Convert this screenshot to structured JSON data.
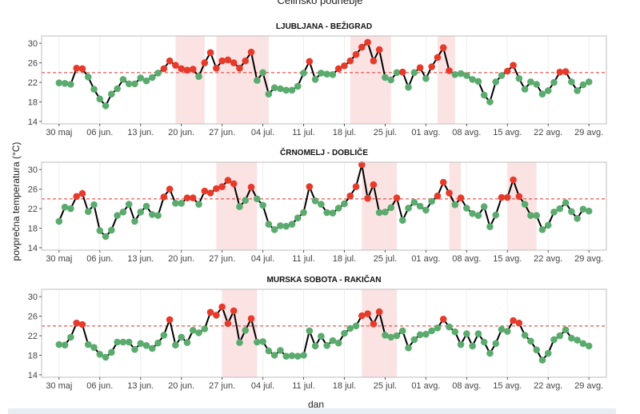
{
  "page": {
    "title": "Celinsko podnebje"
  },
  "colors": {
    "normal_point": "#5bab6f",
    "hot_point": "#e63a2a",
    "line": "#000000",
    "threshold": "#e0302a",
    "heatwave_band": "#fbe3e3",
    "grid": "#ececec",
    "panel_border": "#bdbdbd"
  },
  "chart_data": {
    "type": "line",
    "title": "",
    "xlabel": "dan",
    "ylabel": "povprečna temperatura (°C)",
    "x_start": "2023-05-30",
    "xlim": [
      "2023-05-27",
      "2023-09-01"
    ],
    "x_ticks": [
      {
        "date": "2023-05-30",
        "label": "30 maj"
      },
      {
        "date": "2023-06-06",
        "label": "06 jun."
      },
      {
        "date": "2023-06-13",
        "label": "13 jun."
      },
      {
        "date": "2023-06-20",
        "label": "20 jun."
      },
      {
        "date": "2023-06-27",
        "label": "27 jun."
      },
      {
        "date": "2023-07-04",
        "label": "04 jul."
      },
      {
        "date": "2023-07-11",
        "label": "11 jul."
      },
      {
        "date": "2023-07-18",
        "label": "18 jul."
      },
      {
        "date": "2023-07-25",
        "label": "25 jul."
      },
      {
        "date": "2023-08-01",
        "label": "01 avg."
      },
      {
        "date": "2023-08-08",
        "label": "08 avg."
      },
      {
        "date": "2023-08-15",
        "label": "15 avg."
      },
      {
        "date": "2023-08-22",
        "label": "22 avg."
      },
      {
        "date": "2023-08-29",
        "label": "29 avg."
      }
    ],
    "ylim": [
      13.5,
      31.5
    ],
    "y_ticks": [
      14,
      18,
      22,
      26,
      30
    ],
    "threshold": 24,
    "grid": true,
    "panels": [
      {
        "name": "LJUBLJANA - BEŽIGRAD",
        "values": [
          21.9,
          21.8,
          21.6,
          24.9,
          24.8,
          23.1,
          20.6,
          18.6,
          17.2,
          19.6,
          20.7,
          22.6,
          21.7,
          21.7,
          22.9,
          22.3,
          23.0,
          23.9,
          24.8,
          26.4,
          25.5,
          24.8,
          24.5,
          24.7,
          23.2,
          26.0,
          28.1,
          24.9,
          26.4,
          26.6,
          26.0,
          24.9,
          26.4,
          28.2,
          22.4,
          24.0,
          19.6,
          20.9,
          20.7,
          20.4,
          20.4,
          21.2,
          23.9,
          26.3,
          22.6,
          23.9,
          23.7,
          23.6,
          24.8,
          25.4,
          26.4,
          27.7,
          29.2,
          30.2,
          26.4,
          28.7,
          23.0,
          22.5,
          24.0,
          24.1,
          21.0,
          24.0,
          25.0,
          22.8,
          25.2,
          27.1,
          29.1,
          24.4,
          23.6,
          23.8,
          23.4,
          22.6,
          22.2,
          19.4,
          18.0,
          22.1,
          23.4,
          24.3,
          25.5,
          22.8,
          20.6,
          22.1,
          21.6,
          19.6,
          20.3,
          22.0,
          24.1,
          24.2,
          22.1,
          20.3,
          21.5,
          22.1
        ],
        "heatwave_ranges": [
          [
            "2023-06-19",
            "2023-06-24"
          ],
          [
            "2023-06-26",
            "2023-07-05"
          ],
          [
            "2023-07-19",
            "2023-07-26"
          ],
          [
            "2023-08-03",
            "2023-08-06"
          ]
        ]
      },
      {
        "name": "ČRNOMELJ - DOBLIČE",
        "values": [
          19.4,
          22.3,
          22.0,
          24.5,
          25.1,
          21.4,
          22.8,
          17.5,
          16.3,
          17.6,
          20.6,
          21.3,
          22.9,
          19.4,
          21.3,
          22.5,
          20.8,
          20.6,
          24.4,
          26.0,
          23.1,
          23.1,
          24.2,
          24.2,
          22.9,
          25.6,
          25.2,
          26.1,
          26.5,
          27.8,
          27.1,
          22.4,
          23.7,
          26.4,
          24.0,
          22.7,
          18.8,
          17.7,
          18.5,
          18.4,
          18.8,
          20.1,
          21.2,
          26.5,
          23.6,
          22.9,
          21.2,
          21.1,
          22.1,
          23.0,
          24.6,
          26.5,
          31.0,
          24.1,
          26.9,
          21.2,
          21.3,
          22.2,
          24.2,
          19.6,
          22.1,
          23.3,
          22.5,
          21.7,
          23.5,
          24.6,
          27.4,
          25.2,
          22.8,
          24.2,
          22.1,
          21.0,
          20.6,
          22.4,
          18.3,
          20.7,
          24.3,
          24.3,
          27.9,
          24.5,
          22.9,
          20.6,
          20.6,
          17.7,
          18.6,
          21.3,
          22.0,
          23.2,
          21.4,
          20.0,
          21.9,
          21.5
        ],
        "heatwave_ranges": [
          [
            "2023-06-26",
            "2023-07-03"
          ],
          [
            "2023-07-21",
            "2023-07-27"
          ],
          [
            "2023-08-05",
            "2023-08-07"
          ],
          [
            "2023-08-15",
            "2023-08-20"
          ]
        ]
      },
      {
        "name": "MURSKA SOBOTA - RAKIČAN",
        "values": [
          20.2,
          20.1,
          21.7,
          24.6,
          24.3,
          20.2,
          19.6,
          18.2,
          17.6,
          18.6,
          20.7,
          20.7,
          20.7,
          19.2,
          20.4,
          20.0,
          19.4,
          20.5,
          22.1,
          25.3,
          20.1,
          21.7,
          20.6,
          23.1,
          22.6,
          23.4,
          26.8,
          26.2,
          27.9,
          24.5,
          27.1,
          20.6,
          23.1,
          25.5,
          20.7,
          20.8,
          18.9,
          18.0,
          19.0,
          17.8,
          17.9,
          17.8,
          18.0,
          23.0,
          19.9,
          21.9,
          20.0,
          21.0,
          20.5,
          22.5,
          23.5,
          24.0,
          26.1,
          26.5,
          24.4,
          26.9,
          22.1,
          21.7,
          22.0,
          23.0,
          19.5,
          21.2,
          22.2,
          22.3,
          23.0,
          23.6,
          25.4,
          23.8,
          22.8,
          20.2,
          22.4,
          19.9,
          22.4,
          20.7,
          18.4,
          20.4,
          23.3,
          22.9,
          25.1,
          24.6,
          22.1,
          20.9,
          19.1,
          17.0,
          18.4,
          21.2,
          22.0,
          23.2,
          21.5,
          21.1,
          20.4,
          19.9
        ],
        "heatwave_ranges": [
          [
            "2023-06-27",
            "2023-07-03"
          ],
          [
            "2023-07-21",
            "2023-07-27"
          ]
        ]
      }
    ]
  }
}
